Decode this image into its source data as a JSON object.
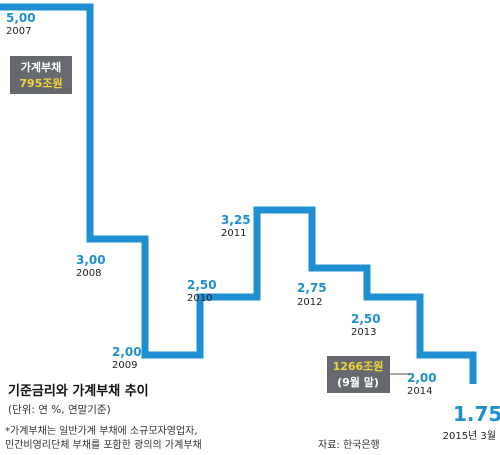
{
  "chart_data": {
    "type": "line",
    "title": "기준금리와 가계부채 추이",
    "subtitle": "(단위: 연 %, 연말기준)",
    "points": [
      {
        "value": 5.0,
        "value_label": "5,00",
        "period_label": "2007"
      },
      {
        "value": 3.0,
        "value_label": "3,00",
        "period_label": "2008"
      },
      {
        "value": 2.0,
        "value_label": "2,00",
        "period_label": "2009"
      },
      {
        "value": 2.5,
        "value_label": "2,50",
        "period_label": "2010"
      },
      {
        "value": 3.25,
        "value_label": "3,25",
        "period_label": "2011"
      },
      {
        "value": 2.75,
        "value_label": "2,75",
        "period_label": "2012"
      },
      {
        "value": 2.5,
        "value_label": "2,50",
        "period_label": "2013"
      },
      {
        "value": 2.0,
        "value_label": "2,00",
        "period_label": "2014"
      },
      {
        "value": 1.75,
        "value_label": "1.75",
        "period_label": "2015년 3월"
      }
    ],
    "line_color": "#1e8fd0",
    "callouts": [
      {
        "line1": "가계부채",
        "line2": "795조원",
        "period": "2007"
      },
      {
        "line1": "1266조원",
        "line2": "(9월 말)",
        "period": "2014"
      }
    ],
    "footnote_lines": [
      "*가계부채는 일반가계 부채에 소규모자영업자,",
      "민간비영리단체 부채를 포함한 광의의 가계부채"
    ],
    "source": "자료: 한국은행"
  }
}
